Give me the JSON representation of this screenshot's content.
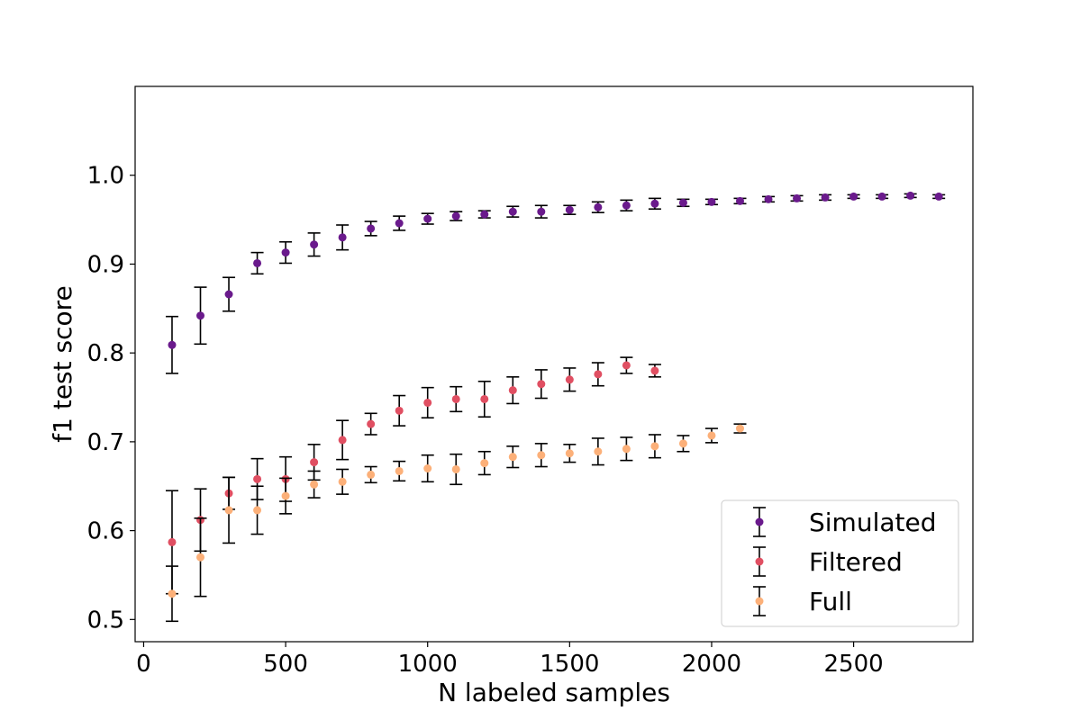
{
  "chart_data": {
    "type": "scatter",
    "title": "",
    "xlabel": "N labeled samples",
    "ylabel": "f1 test score",
    "xlim": [
      -30,
      2920
    ],
    "ylim": [
      0.475,
      1.1
    ],
    "xticks": [
      0,
      500,
      1000,
      1500,
      2000,
      2500
    ],
    "yticks": [
      0.5,
      0.6,
      0.7,
      0.8,
      0.9,
      1.0
    ],
    "xtick_labels": [
      "0",
      "500",
      "1000",
      "1500",
      "2000",
      "2500"
    ],
    "ytick_labels": [
      "0.5",
      "0.6",
      "0.7",
      "0.8",
      "0.9",
      "1.0"
    ],
    "grid": false,
    "legend_position": "bottom-right",
    "error_bars": true,
    "series": [
      {
        "name": "Simulated",
        "color": "#6a1a8c",
        "x": [
          100,
          200,
          300,
          400,
          500,
          600,
          700,
          800,
          900,
          1000,
          1100,
          1200,
          1300,
          1400,
          1500,
          1600,
          1700,
          1800,
          1900,
          2000,
          2100,
          2200,
          2300,
          2400,
          2500,
          2600,
          2700,
          2800
        ],
        "y": [
          0.809,
          0.842,
          0.866,
          0.901,
          0.913,
          0.922,
          0.93,
          0.94,
          0.946,
          0.951,
          0.954,
          0.956,
          0.959,
          0.959,
          0.961,
          0.964,
          0.966,
          0.968,
          0.969,
          0.97,
          0.971,
          0.973,
          0.974,
          0.975,
          0.976,
          0.976,
          0.977,
          0.976
        ],
        "err": [
          0.032,
          0.032,
          0.019,
          0.012,
          0.012,
          0.013,
          0.014,
          0.008,
          0.008,
          0.006,
          0.005,
          0.004,
          0.006,
          0.007,
          0.005,
          0.006,
          0.006,
          0.006,
          0.004,
          0.003,
          0.003,
          0.003,
          0.003,
          0.003,
          0.002,
          0.002,
          0.002,
          0.002
        ]
      },
      {
        "name": "Filtered",
        "color": "#e04f62",
        "x": [
          100,
          200,
          300,
          400,
          500,
          600,
          700,
          800,
          900,
          1000,
          1100,
          1200,
          1300,
          1400,
          1500,
          1600,
          1700,
          1800
        ],
        "y": [
          0.587,
          0.612,
          0.642,
          0.658,
          0.658,
          0.677,
          0.702,
          0.72,
          0.735,
          0.744,
          0.748,
          0.748,
          0.758,
          0.765,
          0.77,
          0.776,
          0.786,
          0.78
        ],
        "err": [
          0.058,
          0.035,
          0.018,
          0.023,
          0.025,
          0.02,
          0.022,
          0.012,
          0.017,
          0.017,
          0.014,
          0.02,
          0.015,
          0.016,
          0.013,
          0.013,
          0.009,
          0.007
        ]
      },
      {
        "name": "Full",
        "color": "#fcb079",
        "x": [
          100,
          200,
          300,
          400,
          500,
          600,
          700,
          800,
          900,
          1000,
          1100,
          1200,
          1300,
          1400,
          1500,
          1600,
          1700,
          1800,
          1900,
          2000,
          2100
        ],
        "y": [
          0.529,
          0.57,
          0.623,
          0.623,
          0.639,
          0.652,
          0.655,
          0.663,
          0.667,
          0.67,
          0.669,
          0.676,
          0.683,
          0.685,
          0.687,
          0.689,
          0.692,
          0.695,
          0.698,
          0.707,
          0.715
        ],
        "err": [
          0.031,
          0.044,
          0.037,
          0.027,
          0.02,
          0.015,
          0.014,
          0.009,
          0.011,
          0.015,
          0.017,
          0.013,
          0.012,
          0.013,
          0.01,
          0.015,
          0.013,
          0.013,
          0.009,
          0.008,
          0.005
        ]
      }
    ]
  }
}
